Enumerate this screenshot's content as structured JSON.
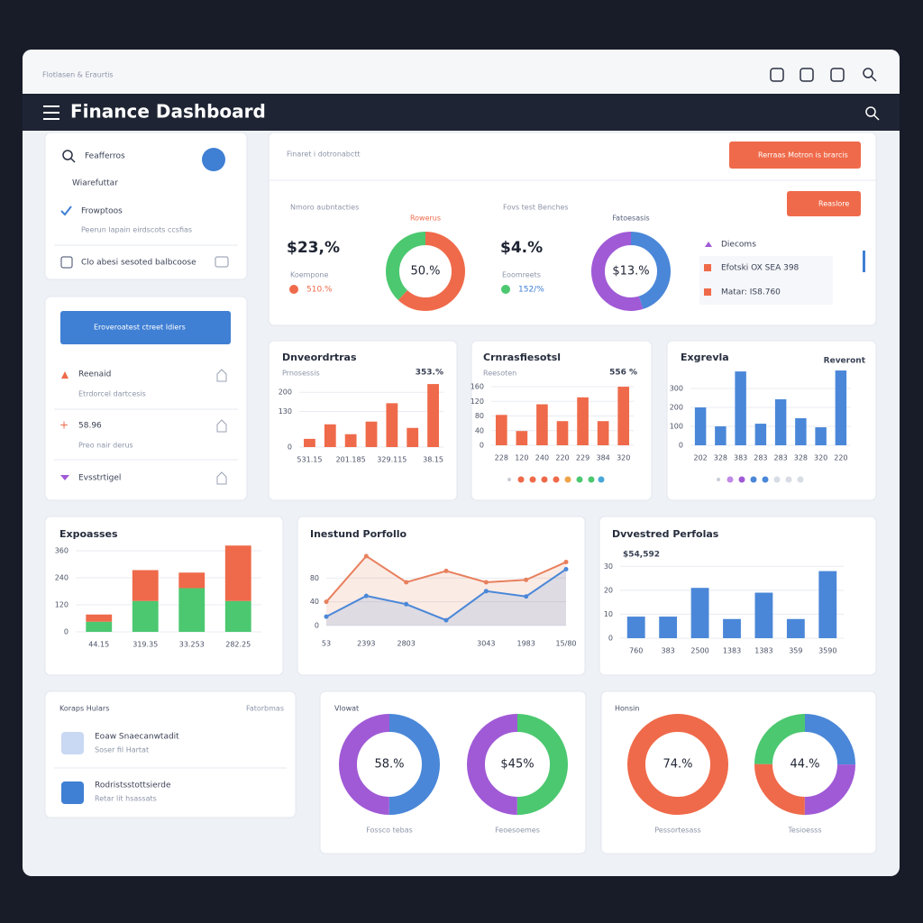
{
  "window": {
    "title": "Flotlasen & Eraurtis"
  },
  "header": {
    "title": "Finance Dashboard"
  },
  "sidebar": {
    "search": "Feafferros",
    "items": [
      "Wiarefuttar",
      "Frowptoos"
    ],
    "note": "Peerun lapain eirdscots ccsfias",
    "link": "Clo abesi sesoted balbcoose"
  },
  "filters": {
    "button": "Eroveroatest ctreet Idiers",
    "items": [
      {
        "label": "Reenaid",
        "sub": "Etrdorcel dartcesis"
      },
      {
        "label": "58.96",
        "sub": "Preo nair derus"
      },
      {
        "label": "Evsstrtigel"
      }
    ]
  },
  "summary": {
    "title": "Finaret i dotronabctt",
    "button": "Rerraas Motron is brarcis",
    "button2": "Reaslore",
    "kpis": [
      {
        "label": "Nmoro aubntacties",
        "value": "$23,%",
        "sub": "Koempone",
        "change": "510.%"
      },
      {
        "label": "Fovs test Benches",
        "value": "$4.%",
        "sub": "Eoomreets",
        "change": "152/%"
      }
    ],
    "legend": [
      "Diecoms",
      "Efotski OX SEA 398",
      "Matar: IS8.760"
    ]
  },
  "accounts": {
    "title": "Koraps Hulars",
    "link": "Fatorbmas",
    "items": [
      {
        "name": "Eoaw Snaecanwtadit",
        "sub": "Soser fil Hartat"
      },
      {
        "name": "Rodristsstottsierde",
        "sub": "Retar lit hsassats"
      }
    ]
  },
  "donut_panels": [
    "Vlowat",
    "Honsin"
  ],
  "chart_data": [
    {
      "type": "donut",
      "title": "Rowerus",
      "center_label": "50.%",
      "values": [
        62,
        38
      ],
      "colors": [
        "#ef6a4a",
        "#4cc870"
      ]
    },
    {
      "type": "donut",
      "title": "Fatoesasis",
      "center_label": "$13.%",
      "values": [
        45,
        55
      ],
      "colors": [
        "#4a87d8",
        "#a05ad6"
      ]
    },
    {
      "type": "bar",
      "title": "Dnveordrtras",
      "subtitle": "Prnosessis",
      "annotation": "353.%",
      "categories": [
        "531.15",
        null,
        "201.185",
        null,
        "329.115",
        null,
        "38.15"
      ],
      "values": [
        30,
        83,
        47,
        93,
        160,
        70,
        230
      ],
      "color": "#ef6a4a",
      "ylim": [
        0,
        250
      ],
      "yticks": [
        0,
        130,
        200
      ],
      "grid": true
    },
    {
      "type": "bar",
      "title": "Crnrasfiesotsl",
      "subtitle": "Reesoten",
      "annotation": "556 %",
      "categories": [
        "228",
        "120",
        "240",
        "220",
        "229",
        "384",
        "320"
      ],
      "values": [
        83,
        39,
        112,
        66,
        131,
        66,
        160
      ],
      "color": "#ef6a4a",
      "ylim": [
        0,
        170
      ],
      "yticks": [
        0,
        40,
        80,
        120,
        160
      ],
      "grid": true
    },
    {
      "type": "bar",
      "title": "Exgrevla",
      "annotation": "Reveront",
      "categories": [
        "202",
        "328",
        "383",
        "283",
        "283",
        "328",
        "320",
        "220"
      ],
      "values": [
        200,
        100,
        390,
        114,
        243,
        143,
        95,
        395
      ],
      "color": "#4a87d8",
      "ylim": [
        0,
        400
      ],
      "yticks": [
        0,
        100,
        200,
        300
      ],
      "grid": true
    },
    {
      "type": "bar",
      "title": "Expoasses",
      "stacked": true,
      "categories": [
        "44.15",
        "319.35",
        "33.253",
        "282.25"
      ],
      "series": [
        {
          "color": "#4cc870",
          "values": [
            45,
            137,
            194,
            137
          ]
        },
        {
          "color": "#ef6a4a",
          "values": [
            32,
            137,
            69,
            246
          ]
        }
      ],
      "ylim": [
        0,
        380
      ],
      "yticks": [
        0,
        120,
        240,
        360
      ],
      "grid": true
    },
    {
      "type": "line",
      "title": "Inestund Porfollo",
      "area": true,
      "categories": [
        "53",
        "2393",
        "2803",
        null,
        "3043",
        "1983",
        "15/80"
      ],
      "series": [
        {
          "color": "#e8805e",
          "values": [
            40,
            117,
            73,
            92,
            73,
            77,
            107
          ]
        },
        {
          "color": "#4a87d8",
          "values": [
            15,
            50,
            36,
            9,
            58,
            49,
            95
          ]
        }
      ],
      "ylim": [
        0,
        120
      ],
      "yticks": [
        0,
        40,
        80
      ],
      "grid": true
    },
    {
      "type": "bar",
      "title": "Dvvestred Perfolas",
      "annotation": "$54,592",
      "categories": [
        "760",
        "383",
        "2500",
        "1383",
        "1383",
        "359",
        "3590"
      ],
      "values": [
        9,
        9,
        21,
        8,
        19,
        8,
        28
      ],
      "color": "#4a87d8",
      "ylim": [
        0,
        35
      ],
      "yticks": [
        0,
        10,
        20,
        30
      ],
      "grid": true
    },
    {
      "type": "donut",
      "center_label": "58.%",
      "caption": "Fossco tebas",
      "values": [
        50,
        50
      ],
      "colors": [
        "#4a87d8",
        "#a05ad6"
      ]
    },
    {
      "type": "donut",
      "center_label": "$45%",
      "caption": "Feoesoemes",
      "values": [
        50,
        50
      ],
      "colors": [
        "#4cc870",
        "#a05ad6"
      ]
    },
    {
      "type": "donut",
      "center_label": "74.%",
      "caption": "Pessortesass",
      "values": [
        100
      ],
      "colors": [
        "#ef6a4a"
      ]
    },
    {
      "type": "donut",
      "center_label": "44.%",
      "caption": "Tesioesss",
      "values": [
        25,
        25,
        25,
        25
      ],
      "colors": [
        "#4a87d8",
        "#a05ad6",
        "#ef6a4a",
        "#4cc870"
      ]
    }
  ]
}
